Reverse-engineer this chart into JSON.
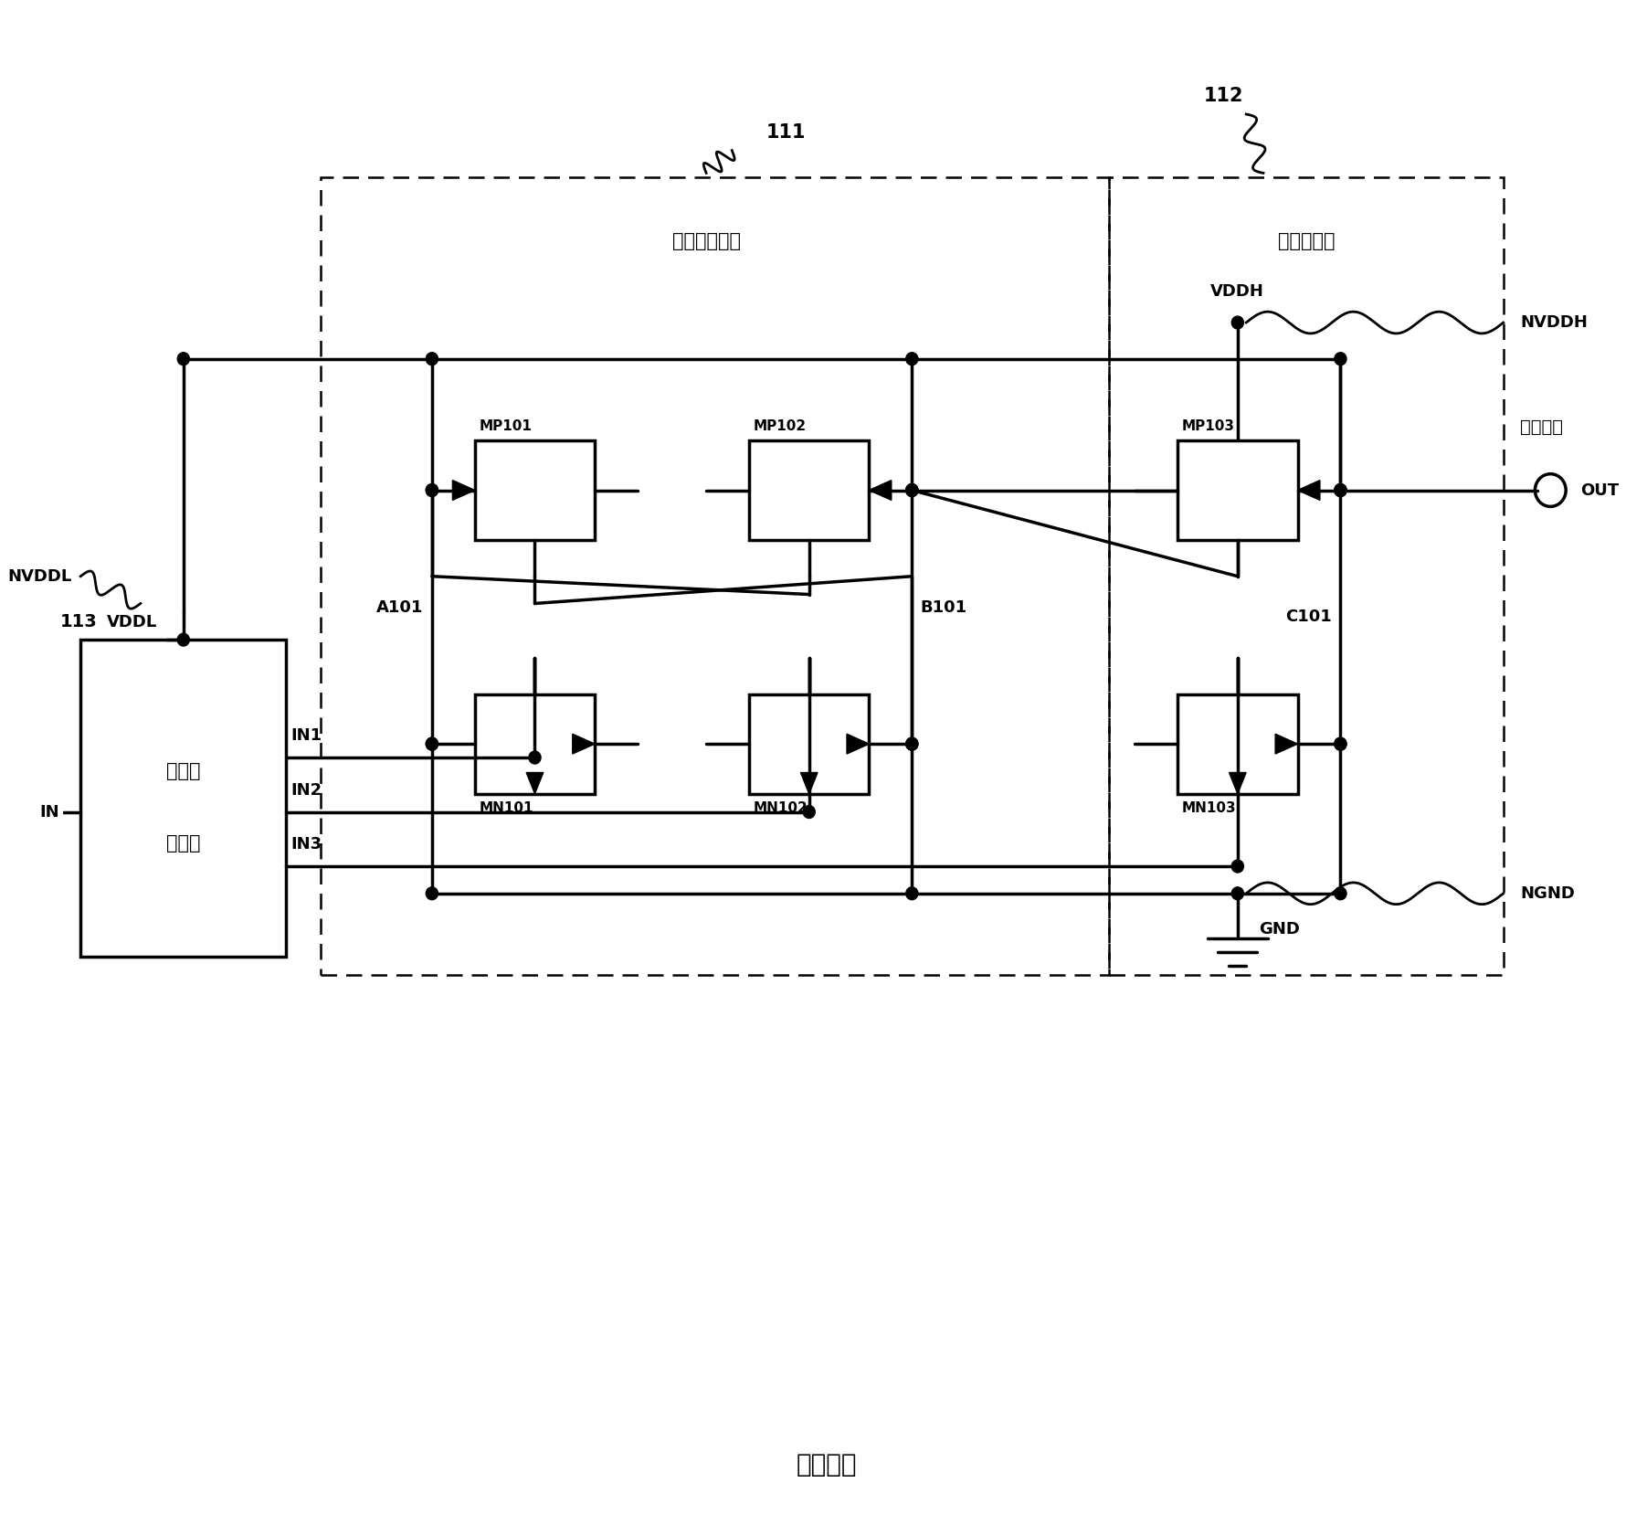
{
  "title": "现有技术",
  "bg_color": "#ffffff",
  "label_111": "111",
  "label_112": "112",
  "label_113": "113",
  "text_levelshift": "电平位移部件",
  "text_buffer": "缓冲器部件",
  "text_lowvolt_1": "低压控",
  "text_lowvolt_2": "制部件",
  "text_VDDH": "VDDH",
  "text_NVDDH": "NVDDH",
  "text_VDDL": "VDDL",
  "text_NVDDL": "NVDDL",
  "text_A101": "A101",
  "text_B101": "B101",
  "text_C101": "C101",
  "text_MP101": "MP101",
  "text_MP102": "MP102",
  "text_MP103": "MP103",
  "text_MN101": "MN101",
  "text_MN102": "MN102",
  "text_MN103": "MN103",
  "text_IN1": "IN1",
  "text_IN2": "IN2",
  "text_IN3": "IN3",
  "text_IN": "IN",
  "text_OUT": "OUT",
  "text_GND": "GND",
  "text_NGND": "NGND",
  "text_output_node": "输出节点"
}
